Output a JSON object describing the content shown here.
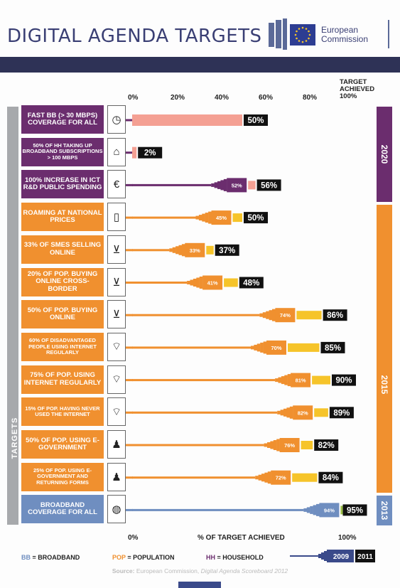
{
  "header": {
    "title": "DIGITAL AGENDA TARGETS",
    "org_line1": "European",
    "org_line2": "Commission"
  },
  "colors": {
    "navy": "#2e3256",
    "purple": "#6b2d6e",
    "orange": "#f0902f",
    "yellow": "#f6c42a",
    "pink": "#f4a093",
    "blue": "#6f8ec0",
    "darkblue": "#3a4a8a",
    "green": "#9bbf45"
  },
  "axis": {
    "top_ticks": [
      "0%",
      "20%",
      "40%",
      "60%",
      "80%"
    ],
    "target_head": "TARGET ACHIEVED 100%",
    "bottom_left": "0%",
    "bottom_center": "% OF TARGET ACHIEVED",
    "bottom_right": "100%"
  },
  "side_label": "TARGETS",
  "years": [
    "2020",
    "2015",
    "2013"
  ],
  "legend": {
    "bb": "BB",
    "bb_text": "= BROADBAND",
    "pop": "POP",
    "pop_text": "= POPULATION",
    "hh": "HH",
    "hh_text": "= HOUSEHOLD",
    "y2009": "2009",
    "y2011": "2011"
  },
  "source": {
    "prefix": "Source:",
    "text": "European Commission,",
    "italic": "Digital Agenda Scoreboard 2012"
  },
  "chart_data": {
    "type": "bar",
    "xlabel": "% OF TARGET ACHIEVED",
    "xlim": [
      0,
      100
    ],
    "series": [
      {
        "name": "2009"
      },
      {
        "name": "2011"
      }
    ],
    "rows": [
      {
        "label": "FAST BB (> 30 MBPS) COVERAGE FOR ALL",
        "icon": "speedometer-icon",
        "group": "2020",
        "v2009": null,
        "v2011": 50
      },
      {
        "label": "50% OF HH TAKING UP BROADBAND SUBSCRIPTIONS > 100 MBPS",
        "icon": "house-icon",
        "group": "2020",
        "v2009": null,
        "v2011": 2
      },
      {
        "label": "100% INCREASE IN ICT R&D PUBLIC SPENDING",
        "icon": "euro-icon",
        "group": "2020",
        "v2009": 52,
        "v2011": 56
      },
      {
        "label": "ROAMING AT NATIONAL PRICES",
        "icon": "mobile-phone-icon",
        "group": "2015",
        "v2009": 45,
        "v2011": 50
      },
      {
        "label": "33% OF SMES SELLING ONLINE",
        "icon": "shopping-basket-icon",
        "group": "2015",
        "v2009": 33,
        "v2011": 37
      },
      {
        "label": "20% OF POP. BUYING ONLINE CROSS-BORDER",
        "icon": "shopping-basket-icon",
        "group": "2015",
        "v2009": 41,
        "v2011": 48
      },
      {
        "label": "50% OF POP. BUYING ONLINE",
        "icon": "shopping-basket-icon",
        "group": "2015",
        "v2009": 74,
        "v2011": 86
      },
      {
        "label": "60% OF DISADVANTAGED PEOPLE USING INTERNET REGULARLY",
        "icon": "wifi-computer-icon",
        "group": "2015",
        "v2009": 70,
        "v2011": 85
      },
      {
        "label": "75% OF POP. USING INTERNET REGULARLY",
        "icon": "wifi-computer-icon",
        "group": "2015",
        "v2009": 81,
        "v2011": 90
      },
      {
        "label": "15% OF POP. HAVING NEVER USED THE INTERNET",
        "icon": "wifi-computer-icon",
        "group": "2015",
        "v2009": 82,
        "v2011": 89
      },
      {
        "label": "50% OF POP. USING E-GOVERNMENT",
        "icon": "official-person-icon",
        "group": "2015",
        "v2009": 76,
        "v2011": 82
      },
      {
        "label": "25% OF POP. USING E-GOVERNMENT AND RETURNING FORMS",
        "icon": "official-person-icon",
        "group": "2015",
        "v2009": 72,
        "v2011": 84
      },
      {
        "label": "BROADBAND COVERAGE FOR ALL",
        "icon": "globe-computer-icon",
        "group": "2013",
        "v2009": 94,
        "v2011": 95
      }
    ]
  }
}
